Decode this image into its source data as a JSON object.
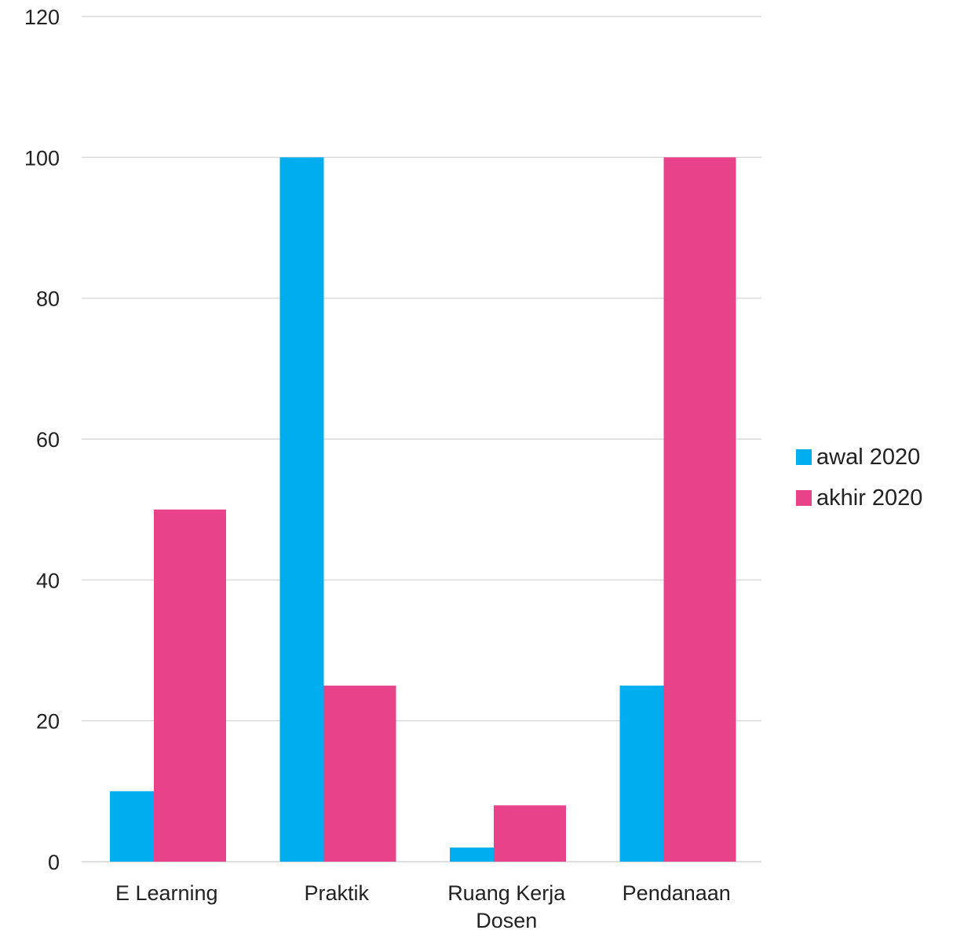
{
  "chart_data": {
    "type": "bar",
    "categories": [
      [
        "E Learning"
      ],
      [
        "Praktik"
      ],
      [
        "Ruang Kerja",
        "Dosen"
      ],
      [
        "Pendanaan"
      ]
    ],
    "series": [
      {
        "name": "awal 2020",
        "color": "#00AEEF",
        "values": [
          10,
          100,
          2,
          25
        ]
      },
      {
        "name": "akhir 2020",
        "color": "#E8438A",
        "values": [
          50,
          25,
          8,
          100
        ]
      }
    ],
    "yticks": [
      0,
      20,
      40,
      60,
      80,
      100,
      120
    ],
    "ylim": [
      0,
      120
    ],
    "grid": true,
    "legend_position": "right"
  }
}
